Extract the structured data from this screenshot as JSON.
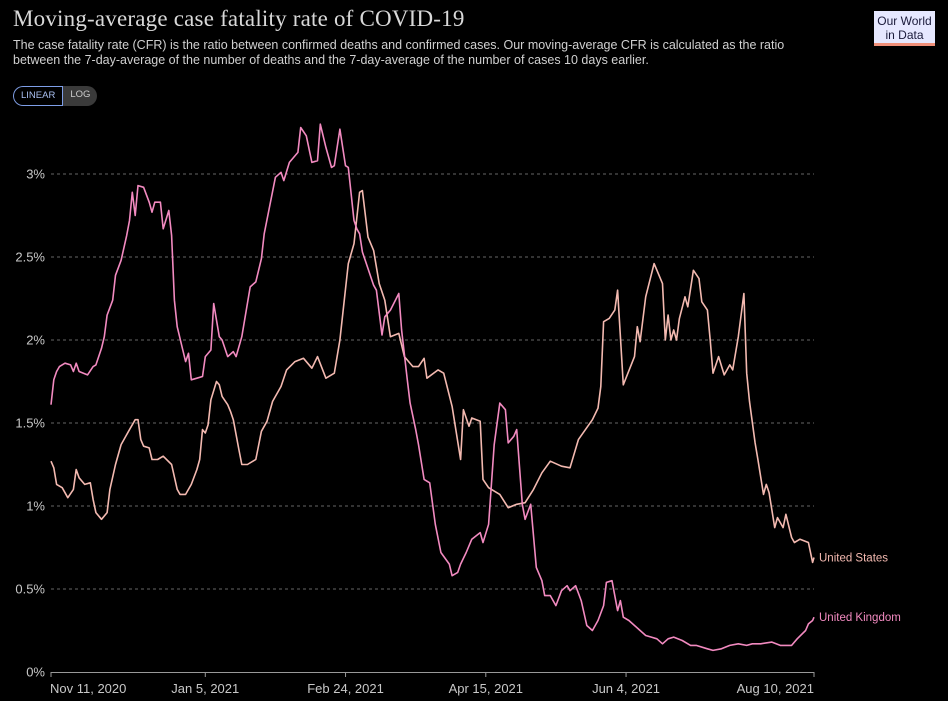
{
  "header": {
    "title": "Moving-average case fatality rate of COVID-19",
    "subtitle": "The case fatality rate (CFR) is the ratio between confirmed deaths and confirmed cases. Our moving-average CFR is calculated as the ratio between the 7-day-average of the number of deaths and the 7-day-average of the number of cases 10 days earlier.",
    "logo_line1": "Our World",
    "logo_line2": "in Data"
  },
  "scale_toggle": {
    "options": [
      "LINEAR",
      "LOG"
    ],
    "selected": "LINEAR"
  },
  "chart_data": {
    "type": "line",
    "title": "Moving-average case fatality rate of COVID-19",
    "xlabel": "",
    "ylabel": "",
    "x_unit": "days since Nov 11, 2020",
    "xlim": [
      0,
      272
    ],
    "ylim": [
      0,
      3.35
    ],
    "y_ticks": [
      0,
      0.5,
      1,
      1.5,
      2,
      2.5,
      3
    ],
    "y_tick_labels": [
      "0%",
      "0.5%",
      "1%",
      "1.5%",
      "2%",
      "2.5%",
      "3%"
    ],
    "x_ticks": [
      0,
      55,
      105,
      155,
      205,
      272
    ],
    "x_tick_labels": [
      "Nov 11, 2020",
      "Jan 5, 2021",
      "Feb 24, 2021",
      "Apr 15, 2021",
      "Jun 4, 2021",
      "Aug 10, 2021"
    ],
    "grid": "horizontal dashed",
    "legend": "inline labels at line ends (right)",
    "series": [
      {
        "name": "United States",
        "color": "#f3b9b0",
        "points": [
          [
            0,
            1.27
          ],
          [
            1,
            1.23
          ],
          [
            2,
            1.13
          ],
          [
            4,
            1.11
          ],
          [
            6,
            1.05
          ],
          [
            8,
            1.1
          ],
          [
            9,
            1.22
          ],
          [
            10,
            1.17
          ],
          [
            12,
            1.13
          ],
          [
            14,
            1.14
          ],
          [
            15,
            1.04
          ],
          [
            16,
            0.96
          ],
          [
            18,
            0.92
          ],
          [
            20,
            0.96
          ],
          [
            21,
            1.1
          ],
          [
            23,
            1.25
          ],
          [
            25,
            1.37
          ],
          [
            26,
            1.4
          ],
          [
            28,
            1.46
          ],
          [
            30,
            1.52
          ],
          [
            31,
            1.52
          ],
          [
            32,
            1.4
          ],
          [
            33,
            1.36
          ],
          [
            35,
            1.35
          ],
          [
            36,
            1.28
          ],
          [
            38,
            1.28
          ],
          [
            40,
            1.3
          ],
          [
            43,
            1.25
          ],
          [
            45,
            1.1
          ],
          [
            46,
            1.07
          ],
          [
            48,
            1.07
          ],
          [
            50,
            1.13
          ],
          [
            52,
            1.22
          ],
          [
            53,
            1.28
          ],
          [
            54,
            1.46
          ],
          [
            55,
            1.44
          ],
          [
            56,
            1.49
          ],
          [
            57,
            1.64
          ],
          [
            59,
            1.75
          ],
          [
            60,
            1.73
          ],
          [
            61,
            1.66
          ],
          [
            63,
            1.61
          ],
          [
            64,
            1.57
          ],
          [
            65,
            1.52
          ],
          [
            67,
            1.34
          ],
          [
            68,
            1.25
          ],
          [
            70,
            1.25
          ],
          [
            73,
            1.28
          ],
          [
            75,
            1.45
          ],
          [
            77,
            1.51
          ],
          [
            79,
            1.63
          ],
          [
            82,
            1.72
          ],
          [
            84,
            1.82
          ],
          [
            87,
            1.87
          ],
          [
            90,
            1.89
          ],
          [
            93,
            1.83
          ],
          [
            95,
            1.9
          ],
          [
            98,
            1.77
          ],
          [
            101,
            1.8
          ],
          [
            103,
            2.0
          ],
          [
            106,
            2.46
          ],
          [
            108,
            2.58
          ],
          [
            110,
            2.89
          ],
          [
            111,
            2.9
          ],
          [
            113,
            2.62
          ],
          [
            115,
            2.54
          ],
          [
            117,
            2.34
          ],
          [
            119,
            2.24
          ],
          [
            121,
            2.02
          ],
          [
            124,
            2.04
          ],
          [
            126,
            1.9
          ],
          [
            129,
            1.84
          ],
          [
            131,
            1.84
          ],
          [
            133,
            1.89
          ],
          [
            134,
            1.77
          ],
          [
            138,
            1.82
          ],
          [
            140,
            1.8
          ],
          [
            143,
            1.6
          ],
          [
            146,
            1.28
          ],
          [
            147,
            1.58
          ],
          [
            149,
            1.48
          ],
          [
            150,
            1.53
          ],
          [
            153,
            1.51
          ],
          [
            154,
            1.16
          ],
          [
            156,
            1.11
          ],
          [
            160,
            1.07
          ],
          [
            163,
            0.99
          ],
          [
            166,
            1.01
          ],
          [
            169,
            1.02
          ],
          [
            172,
            1.1
          ],
          [
            175,
            1.2
          ],
          [
            178,
            1.27
          ],
          [
            182,
            1.24
          ],
          [
            185,
            1.23
          ],
          [
            188,
            1.4
          ],
          [
            193,
            1.52
          ],
          [
            195,
            1.59
          ],
          [
            196,
            1.72
          ],
          [
            197,
            2.11
          ],
          [
            199,
            2.13
          ],
          [
            201,
            2.18
          ],
          [
            202,
            2.3
          ],
          [
            204,
            1.73
          ],
          [
            208,
            1.9
          ],
          [
            209,
            2.08
          ],
          [
            210,
            1.99
          ],
          [
            212,
            2.26
          ],
          [
            215,
            2.46
          ],
          [
            218,
            2.34
          ],
          [
            219,
            2.0
          ],
          [
            220,
            2.15
          ],
          [
            221,
            2.0
          ],
          [
            222,
            2.06
          ],
          [
            223,
            2.0
          ],
          [
            224,
            2.13
          ],
          [
            226,
            2.26
          ],
          [
            227,
            2.2
          ],
          [
            229,
            2.42
          ],
          [
            231,
            2.37
          ],
          [
            232,
            2.23
          ],
          [
            234,
            2.18
          ],
          [
            235,
            2.0
          ],
          [
            236,
            1.8
          ],
          [
            238,
            1.9
          ],
          [
            240,
            1.79
          ],
          [
            242,
            1.85
          ],
          [
            243,
            1.82
          ],
          [
            245,
            2.02
          ],
          [
            247,
            2.28
          ],
          [
            248,
            1.8
          ],
          [
            249,
            1.63
          ],
          [
            251,
            1.38
          ],
          [
            252,
            1.28
          ],
          [
            254,
            1.07
          ],
          [
            255,
            1.13
          ],
          [
            256,
            1.08
          ],
          [
            258,
            0.87
          ],
          [
            259,
            0.93
          ],
          [
            261,
            0.87
          ],
          [
            262,
            0.95
          ],
          [
            264,
            0.81
          ],
          [
            265,
            0.78
          ],
          [
            267,
            0.8
          ],
          [
            270,
            0.78
          ],
          [
            271.5,
            0.66
          ],
          [
            272,
            0.69
          ]
        ]
      },
      {
        "name": "United Kingdom",
        "color": "#f28ac0",
        "points": [
          [
            0,
            1.61
          ],
          [
            1,
            1.76
          ],
          [
            2,
            1.81
          ],
          [
            3,
            1.84
          ],
          [
            5,
            1.86
          ],
          [
            7,
            1.85
          ],
          [
            8,
            1.81
          ],
          [
            9,
            1.86
          ],
          [
            10,
            1.81
          ],
          [
            13,
            1.79
          ],
          [
            15,
            1.84
          ],
          [
            16,
            1.85
          ],
          [
            18,
            1.95
          ],
          [
            19,
            2.02
          ],
          [
            20,
            2.15
          ],
          [
            22,
            2.24
          ],
          [
            23,
            2.39
          ],
          [
            25,
            2.48
          ],
          [
            27,
            2.63
          ],
          [
            28,
            2.72
          ],
          [
            29,
            2.89
          ],
          [
            30,
            2.75
          ],
          [
            31,
            2.93
          ],
          [
            33,
            2.92
          ],
          [
            35,
            2.83
          ],
          [
            36,
            2.77
          ],
          [
            37,
            2.83
          ],
          [
            39,
            2.83
          ],
          [
            40,
            2.67
          ],
          [
            42,
            2.78
          ],
          [
            43,
            2.63
          ],
          [
            44,
            2.24
          ],
          [
            45,
            2.08
          ],
          [
            47,
            1.94
          ],
          [
            48,
            1.87
          ],
          [
            49,
            1.92
          ],
          [
            50,
            1.76
          ],
          [
            52,
            1.77
          ],
          [
            54,
            1.78
          ],
          [
            55,
            1.9
          ],
          [
            57,
            1.94
          ],
          [
            58,
            2.22
          ],
          [
            60,
            2.02
          ],
          [
            61,
            2.0
          ],
          [
            63,
            1.9
          ],
          [
            65,
            1.93
          ],
          [
            66,
            1.9
          ],
          [
            68,
            2.02
          ],
          [
            69,
            2.12
          ],
          [
            71,
            2.32
          ],
          [
            73,
            2.35
          ],
          [
            75,
            2.49
          ],
          [
            76,
            2.64
          ],
          [
            78,
            2.81
          ],
          [
            80,
            2.98
          ],
          [
            82,
            3.01
          ],
          [
            83,
            2.96
          ],
          [
            85,
            3.07
          ],
          [
            88,
            3.13
          ],
          [
            89,
            3.28
          ],
          [
            91,
            3.23
          ],
          [
            93,
            3.07
          ],
          [
            95,
            3.08
          ],
          [
            96,
            3.3
          ],
          [
            98,
            3.16
          ],
          [
            100,
            3.04
          ],
          [
            101,
            3.05
          ],
          [
            103,
            3.27
          ],
          [
            105,
            3.05
          ],
          [
            106,
            3.04
          ],
          [
            108,
            2.72
          ],
          [
            109,
            2.67
          ],
          [
            110,
            2.64
          ],
          [
            111,
            2.53
          ],
          [
            112,
            2.48
          ],
          [
            115,
            2.33
          ],
          [
            116,
            2.3
          ],
          [
            118,
            2.03
          ],
          [
            119,
            2.14
          ],
          [
            121,
            2.18
          ],
          [
            124,
            2.28
          ],
          [
            125,
            2.06
          ],
          [
            127,
            1.76
          ],
          [
            128,
            1.62
          ],
          [
            130,
            1.46
          ],
          [
            131,
            1.37
          ],
          [
            133,
            1.16
          ],
          [
            135,
            1.14
          ],
          [
            137,
            0.89
          ],
          [
            139,
            0.72
          ],
          [
            142,
            0.65
          ],
          [
            143,
            0.58
          ],
          [
            145,
            0.6
          ],
          [
            146,
            0.65
          ],
          [
            148,
            0.72
          ],
          [
            150,
            0.8
          ],
          [
            153,
            0.84
          ],
          [
            154,
            0.78
          ],
          [
            156,
            0.89
          ],
          [
            158,
            1.37
          ],
          [
            160,
            1.62
          ],
          [
            162,
            1.58
          ],
          [
            163,
            1.38
          ],
          [
            165,
            1.42
          ],
          [
            166,
            1.46
          ],
          [
            168,
            1.01
          ],
          [
            169,
            0.92
          ],
          [
            171,
            1.01
          ],
          [
            173,
            0.63
          ],
          [
            175,
            0.55
          ],
          [
            176,
            0.46
          ],
          [
            178,
            0.46
          ],
          [
            180,
            0.4
          ],
          [
            182,
            0.49
          ],
          [
            184,
            0.52
          ],
          [
            185,
            0.49
          ],
          [
            187,
            0.52
          ],
          [
            189,
            0.43
          ],
          [
            191,
            0.28
          ],
          [
            193,
            0.25
          ],
          [
            195,
            0.31
          ],
          [
            197,
            0.4
          ],
          [
            198,
            0.54
          ],
          [
            200,
            0.55
          ],
          [
            202,
            0.37
          ],
          [
            203,
            0.43
          ],
          [
            204,
            0.33
          ],
          [
            206,
            0.31
          ],
          [
            208,
            0.28
          ],
          [
            210,
            0.25
          ],
          [
            212,
            0.22
          ],
          [
            214,
            0.21
          ],
          [
            216,
            0.2
          ],
          [
            218,
            0.17
          ],
          [
            220,
            0.2
          ],
          [
            222,
            0.21
          ],
          [
            225,
            0.19
          ],
          [
            228,
            0.16
          ],
          [
            230,
            0.16
          ],
          [
            234,
            0.14
          ],
          [
            236,
            0.13
          ],
          [
            239,
            0.14
          ],
          [
            242,
            0.16
          ],
          [
            245,
            0.17
          ],
          [
            248,
            0.16
          ],
          [
            250,
            0.17
          ],
          [
            253,
            0.17
          ],
          [
            257,
            0.18
          ],
          [
            260,
            0.16
          ],
          [
            264,
            0.16
          ],
          [
            266,
            0.2
          ],
          [
            269,
            0.25
          ],
          [
            270,
            0.29
          ],
          [
            271.5,
            0.31
          ],
          [
            272,
            0.33
          ]
        ]
      }
    ]
  },
  "colors": {
    "background": "#000000",
    "grid": "#666666",
    "axis": "#999999",
    "toggle_active_border": "#7e9ee8"
  }
}
